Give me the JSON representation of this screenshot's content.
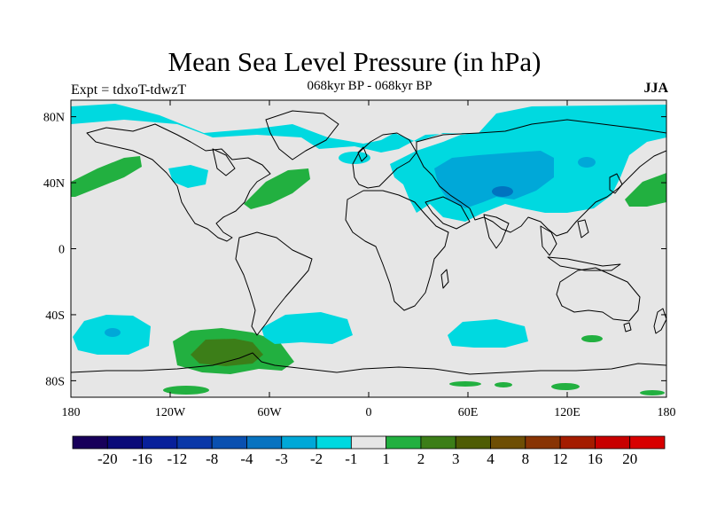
{
  "figure": {
    "title": "Mean Sea Level Pressure (in hPa)",
    "experiment": "Expt = tdxoT-tdwzT",
    "period": "068kyr BP - 068kyr BP",
    "season": "JJA"
  },
  "map": {
    "projection": "cylindrical-equidistant",
    "lon_range": [
      -180,
      180
    ],
    "lat_range": [
      -90,
      90
    ],
    "ocean_fill": "#e6e6e6",
    "coastline_color": "#000000",
    "x_ticks": [
      {
        "lon": -180,
        "label": "180"
      },
      {
        "lon": -120,
        "label": "120W"
      },
      {
        "lon": -60,
        "label": "60W"
      },
      {
        "lon": 0,
        "label": "0"
      },
      {
        "lon": 60,
        "label": "60E"
      },
      {
        "lon": 120,
        "label": "120E"
      },
      {
        "lon": 180,
        "label": "180"
      }
    ],
    "y_ticks": [
      {
        "lat": 80,
        "label": "80N"
      },
      {
        "lat": 40,
        "label": "40N"
      },
      {
        "lat": 0,
        "label": "0"
      },
      {
        "lat": -40,
        "label": "40S"
      },
      {
        "lat": -80,
        "label": "80S"
      }
    ],
    "anomaly_regions": [
      {
        "region": "Arctic and North Atlantic",
        "level": "-1",
        "color": "#00d9e0"
      },
      {
        "region": "Siberia and Central Asia",
        "level": "-1",
        "color": "#00d9e0"
      },
      {
        "region": "Central Asia core",
        "level": "-2",
        "color": "#00a8d8"
      },
      {
        "region": "Tibetan Plateau center",
        "level": "-3",
        "color": "#0073c0"
      },
      {
        "region": "Western North America",
        "level": "-1",
        "color": "#00d9e0"
      },
      {
        "region": "North Pacific east",
        "level": "1",
        "color": "#22b040"
      },
      {
        "region": "North Atlantic west",
        "level": "1",
        "color": "#22b040"
      },
      {
        "region": "North Pacific west",
        "level": "1",
        "color": "#22b040"
      },
      {
        "region": "South Pacific west",
        "level": "-1",
        "color": "#00d9e0"
      },
      {
        "region": "South Pacific center",
        "level": "-2",
        "color": "#00a8d8"
      },
      {
        "region": "South Pacific east",
        "level": "1",
        "color": "#22b040"
      },
      {
        "region": "Amundsen-Bellingshausen Sea",
        "level": "2",
        "color": "#3c7e18"
      },
      {
        "region": "South Atlantic",
        "level": "-1",
        "color": "#00d9e0"
      },
      {
        "region": "Southern Indian Ocean",
        "level": "-1",
        "color": "#00d9e0"
      },
      {
        "region": "Southern Ocean 50E",
        "level": "1",
        "color": "#22b040"
      },
      {
        "region": "Antarctic coast",
        "level": "1",
        "color": "#22b040"
      }
    ]
  },
  "colorbar": {
    "labels": [
      "-20",
      "-16",
      "-12",
      "-8",
      "-4",
      "-3",
      "-2",
      "-1",
      "1",
      "2",
      "3",
      "4",
      "8",
      "12",
      "16",
      "20"
    ],
    "colors": [
      "#18005a",
      "#0a0a78",
      "#08209a",
      "#0a38a8",
      "#0a50b0",
      "#0873c0",
      "#00a8d8",
      "#00d9e0",
      "#e6e6e6",
      "#22b040",
      "#3c7e18",
      "#4e5c04",
      "#6e4e04",
      "#883404",
      "#a41c00",
      "#c80000",
      "#d80000"
    ]
  }
}
